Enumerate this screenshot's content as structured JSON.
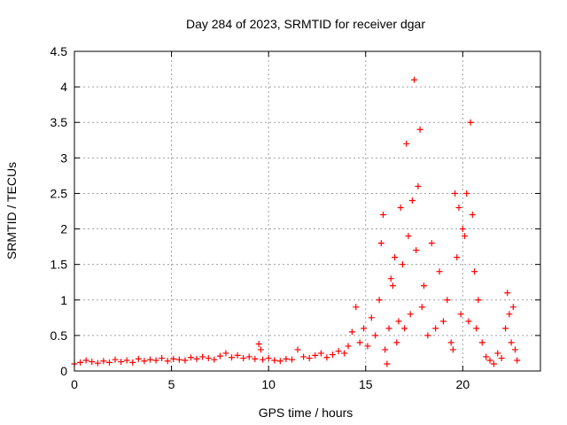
{
  "chart_data": {
    "type": "scatter",
    "title": "Day 284 of 2023, SRMTID for receiver dgar",
    "xlabel": "GPS time / hours",
    "ylabel": "SRMTID / TECUs",
    "xlim": [
      0,
      24
    ],
    "ylim": [
      0,
      4.5
    ],
    "x_ticks": [
      0,
      5,
      10,
      15,
      20
    ],
    "x_tick_labels": [
      "0",
      "5",
      "10",
      "15",
      "20"
    ],
    "y_ticks": [
      0,
      0.5,
      1,
      1.5,
      2,
      2.5,
      3,
      3.5,
      4,
      4.5
    ],
    "y_tick_labels": [
      "0",
      "0.5",
      "1",
      "1.5",
      "2",
      "2.5",
      "3",
      "3.5",
      "4",
      "4.5"
    ],
    "grid": true,
    "marker": "plus",
    "marker_color": "#ff0000",
    "series": [
      {
        "name": "SRMTID",
        "x": [
          0.0,
          0.3,
          0.6,
          0.9,
          1.2,
          1.5,
          1.8,
          2.1,
          2.4,
          2.7,
          3.0,
          3.3,
          3.6,
          3.9,
          4.2,
          4.5,
          4.8,
          5.1,
          5.4,
          5.7,
          6.0,
          6.3,
          6.6,
          6.9,
          7.2,
          7.5,
          7.8,
          8.1,
          8.4,
          8.7,
          9.0,
          9.3,
          9.5,
          9.6,
          9.7,
          10.0,
          10.3,
          10.6,
          10.9,
          11.2,
          11.5,
          11.8,
          12.1,
          12.4,
          12.7,
          13.0,
          13.3,
          13.6,
          13.9,
          14.1,
          14.3,
          14.5,
          14.7,
          14.9,
          15.1,
          15.3,
          15.5,
          15.7,
          15.8,
          15.9,
          16.0,
          16.1,
          16.2,
          16.3,
          16.4,
          16.5,
          16.6,
          16.7,
          16.8,
          16.9,
          17.0,
          17.1,
          17.2,
          17.3,
          17.4,
          17.5,
          17.6,
          17.7,
          17.8,
          17.9,
          18.0,
          18.2,
          18.4,
          18.6,
          18.8,
          19.0,
          19.2,
          19.4,
          19.5,
          19.6,
          19.7,
          19.8,
          19.9,
          20.0,
          20.1,
          20.2,
          20.3,
          20.4,
          20.5,
          20.6,
          20.7,
          20.8,
          21.0,
          21.2,
          21.4,
          21.6,
          21.8,
          22.0,
          22.2,
          22.3,
          22.4,
          22.5,
          22.6,
          22.7,
          22.8
        ],
        "y": [
          0.1,
          0.12,
          0.15,
          0.13,
          0.11,
          0.14,
          0.12,
          0.16,
          0.13,
          0.15,
          0.12,
          0.17,
          0.14,
          0.16,
          0.15,
          0.18,
          0.14,
          0.17,
          0.16,
          0.15,
          0.19,
          0.17,
          0.2,
          0.18,
          0.16,
          0.21,
          0.25,
          0.19,
          0.22,
          0.18,
          0.2,
          0.17,
          0.38,
          0.3,
          0.16,
          0.18,
          0.15,
          0.14,
          0.17,
          0.16,
          0.3,
          0.2,
          0.18,
          0.22,
          0.25,
          0.19,
          0.23,
          0.28,
          0.25,
          0.35,
          0.55,
          0.9,
          0.4,
          0.6,
          0.35,
          0.75,
          0.5,
          1.0,
          1.8,
          2.2,
          0.3,
          0.1,
          0.6,
          1.3,
          1.2,
          1.6,
          0.4,
          0.7,
          2.3,
          1.5,
          0.6,
          3.2,
          1.9,
          0.8,
          2.4,
          4.1,
          1.7,
          2.6,
          3.4,
          0.9,
          1.2,
          0.5,
          1.8,
          0.6,
          1.4,
          0.7,
          1.0,
          0.4,
          0.3,
          2.5,
          1.6,
          2.3,
          0.8,
          2.0,
          1.9,
          2.5,
          0.7,
          3.5,
          2.2,
          1.4,
          0.6,
          1.0,
          0.4,
          0.2,
          0.15,
          0.1,
          0.25,
          0.18,
          0.6,
          1.1,
          0.8,
          0.4,
          0.9,
          0.3,
          0.15
        ]
      }
    ]
  }
}
